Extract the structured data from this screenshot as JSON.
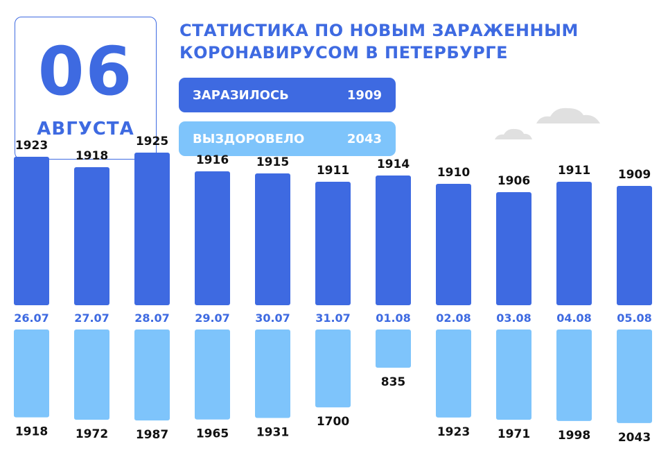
{
  "date": {
    "day": "06",
    "month": "АВГУСТА"
  },
  "title": "Статистика по новым зараженным коронавирусом в Петербурге",
  "summary": {
    "infected_label": "ЗАРАЗИЛОСЬ",
    "infected_value": "1909",
    "recovered_label": "ВЫЗДОРОВЕЛО",
    "recovered_value": "2043"
  },
  "colors": {
    "infected": "#3e6ae1",
    "recovered": "#7ec4fb",
    "cloud": "#e0e0e0"
  },
  "chart_data": {
    "type": "bar",
    "categories": [
      "26.07",
      "27.07",
      "28.07",
      "29.07",
      "30.07",
      "31.07",
      "01.08",
      "02.08",
      "03.08",
      "04.08",
      "05.08"
    ],
    "series": [
      {
        "name": "ЗАРАЗИЛОСЬ",
        "values": [
          1923,
          1918,
          1925,
          1916,
          1915,
          1911,
          1914,
          1910,
          1906,
          1911,
          1909
        ]
      },
      {
        "name": "ВЫЗДОРОВЕЛО",
        "values": [
          1918,
          1972,
          1987,
          1965,
          1931,
          1700,
          835,
          1923,
          1971,
          1998,
          2043
        ]
      }
    ]
  }
}
